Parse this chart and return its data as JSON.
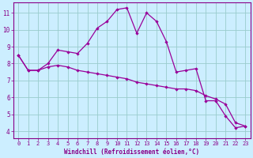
{
  "xlabel": "Windchill (Refroidissement éolien,°C)",
  "hours": [
    0,
    1,
    2,
    3,
    4,
    5,
    6,
    7,
    8,
    9,
    10,
    11,
    12,
    13,
    14,
    15,
    16,
    17,
    18,
    19,
    20,
    21,
    22,
    23
  ],
  "windchill": [
    8.5,
    7.6,
    7.6,
    8.0,
    8.8,
    8.7,
    8.6,
    9.2,
    10.1,
    10.5,
    11.2,
    11.3,
    9.8,
    11.0,
    10.5,
    9.3,
    7.5,
    7.6,
    7.7,
    5.8,
    5.8,
    4.9,
    4.2,
    4.3
  ],
  "temp": [
    8.5,
    7.6,
    7.6,
    7.8,
    7.9,
    7.8,
    7.6,
    7.5,
    7.4,
    7.3,
    7.2,
    7.1,
    6.9,
    6.8,
    6.7,
    6.6,
    6.5,
    6.5,
    6.4,
    6.1,
    5.9,
    5.6,
    4.5,
    4.3
  ],
  "line_color": "#990099",
  "bg_color": "#cceeff",
  "grid_color": "#99cccc",
  "ylim_min": 3.6,
  "ylim_max": 11.6,
  "yticks": [
    4,
    5,
    6,
    7,
    8,
    9,
    10,
    11
  ],
  "text_color": "#880088",
  "tick_fontsize": 5.0,
  "label_fontsize": 5.5
}
